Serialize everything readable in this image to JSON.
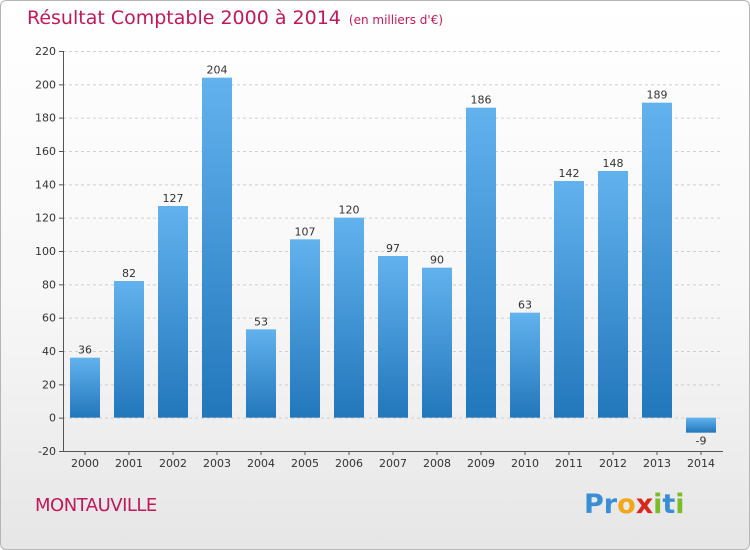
{
  "title": "Résultat Comptable 2000 à 2014",
  "subtitle": "(en milliers d'€)",
  "commune": "MONTAUVILLE",
  "logo": {
    "letters": [
      "P",
      "r",
      "o",
      "x",
      "i",
      "t",
      "i"
    ],
    "colors": [
      "#3a8ed6",
      "#3a8ed6",
      "#f0a818",
      "#d8281c",
      "#7dbb2a",
      "#3a8ed6",
      "#7dbb2a"
    ]
  },
  "colors": {
    "bar_top": "#62b2ee",
    "bar_bottom": "#2277bb",
    "accent": "#c2185b"
  },
  "chart_data": {
    "type": "bar",
    "categories": [
      "2000",
      "2001",
      "2002",
      "2003",
      "2004",
      "2005",
      "2006",
      "2007",
      "2008",
      "2009",
      "2010",
      "2011",
      "2012",
      "2013",
      "2014"
    ],
    "values": [
      36,
      82,
      127,
      204,
      53,
      107,
      120,
      97,
      90,
      186,
      63,
      142,
      148,
      189,
      -9
    ],
    "data_labels": [
      "36",
      "82",
      "127",
      "204",
      "53",
      "107",
      "120",
      "97",
      "90",
      "186",
      "63",
      "142",
      "148",
      "189",
      "-9"
    ],
    "yticks": [
      -20,
      0,
      20,
      40,
      60,
      80,
      100,
      120,
      140,
      160,
      180,
      200,
      220
    ],
    "ytick_labels": [
      "-20",
      "0",
      "20",
      "40",
      "60",
      "80",
      "100",
      "120",
      "140",
      "160",
      "180",
      "200",
      "220"
    ],
    "ylim": [
      -20,
      220
    ],
    "grid": true,
    "xlabel": "",
    "ylabel": ""
  }
}
